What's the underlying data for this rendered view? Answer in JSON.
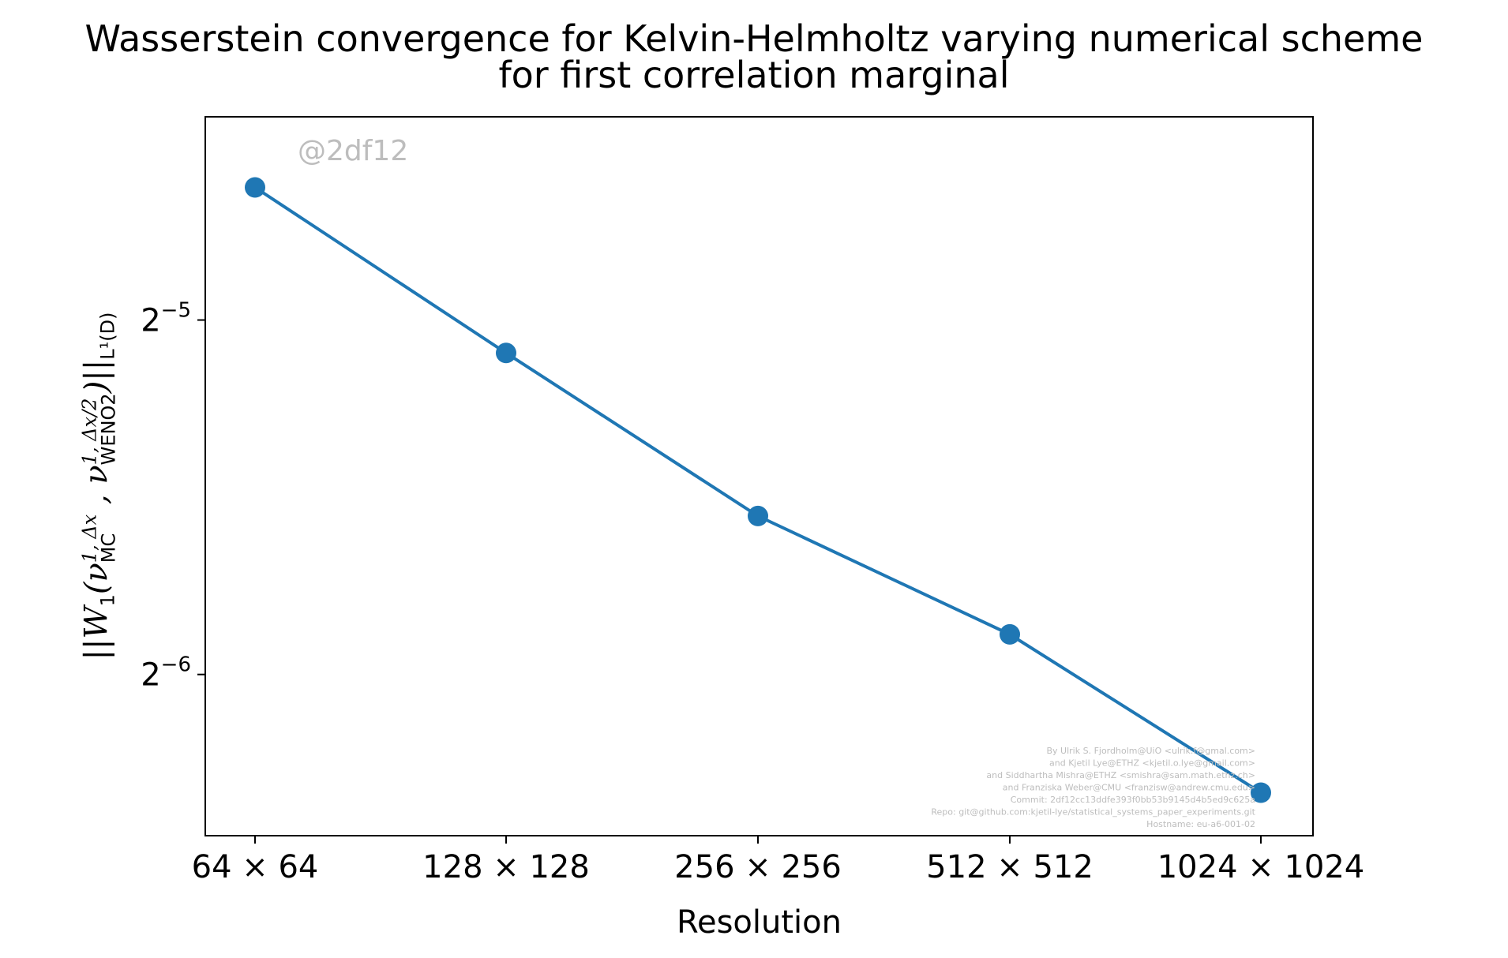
{
  "chart_data": {
    "type": "line",
    "title": "Wasserstein convergence for Kelvin-Helmholtz varying numerical scheme",
    "subtitle": "for first correlation marginal",
    "xlabel": "Resolution",
    "ylabel": {
      "prefix": "||W",
      "w_sub": "1",
      "open": "(ν",
      "mc_sup": "1, Δx",
      "mc_sub": "MC",
      "sep": " , ν",
      "weno_sup": "1, Δx/2",
      "weno_sub": "WENO2",
      "close": ")||",
      "norm_sub": "L¹(D)"
    },
    "categories": [
      "64 × 64",
      "128 × 128",
      "256 × 256",
      "512 × 512",
      "1024 × 1024"
    ],
    "series": [
      {
        "values": [
          0.0405,
          0.0293,
          0.0213,
          0.0169,
          0.0124
        ],
        "color": "#1f77b4"
      }
    ],
    "yscale": "log2",
    "ylim": [
      0.0114,
      0.0465
    ],
    "yticks": [
      {
        "value": 0.03125,
        "base": "2",
        "exp": "−5"
      },
      {
        "value": 0.015625,
        "base": "2",
        "exp": "−6"
      }
    ],
    "grid": false,
    "watermark": "@2df12",
    "credits": [
      "By Ulrik S. Fjordholm@UiO <ulrik.f@gmal.com>",
      "and Kjetil Lye@ETHZ <kjetil.o.lye@gmail.com>",
      "and Siddhartha Mishra@ETHZ <smishra@sam.math.ethz.ch>",
      "and Franziska Weber@CMU <franzisw@andrew.cmu.edu>",
      "Commit: 2df12cc13ddfe393f0bb53b9145d4b5ed9c625a",
      "Repo: git@github.com:kjetil-lye/statistical_systems_paper_experiments.git",
      "Hostname: eu-a6-001-02"
    ]
  }
}
